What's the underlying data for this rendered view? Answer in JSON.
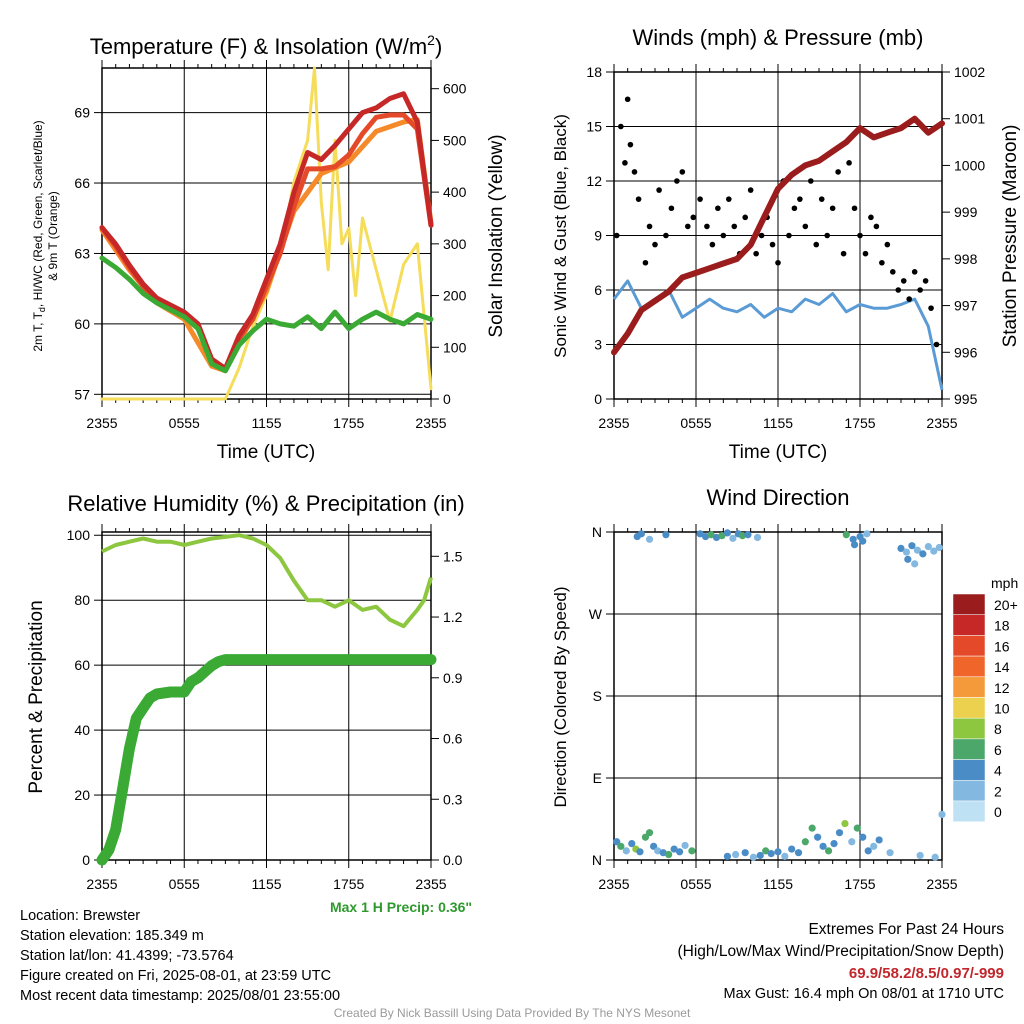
{
  "chart_data": [
    {
      "type": "line",
      "title": "Temperature (F) & Insolation (W/m",
      "title_sup": "2",
      "title_close": ")",
      "xlabel": "Time (UTC)",
      "ylabel_lines": [
        "2m T, T",
        "d",
        ", HI/WC (Red, Green, Scarlet/Blue)",
        "& 9m T (Orange)"
      ],
      "ylabel_right": "Solar Insolation (Yellow)",
      "xticks": [
        "2355",
        "0555",
        "1155",
        "1755",
        "2355"
      ],
      "x_hours": [
        0,
        6,
        12,
        18,
        24
      ],
      "ylim": [
        56.8,
        70.9
      ],
      "yticks": [
        "57",
        "60",
        "63",
        "66",
        "69"
      ],
      "ylim_right": [
        0,
        640
      ],
      "yticks_right": [
        "0",
        "100",
        "200",
        "300",
        "400",
        "500",
        "600"
      ],
      "series": [
        {
          "color": "#e44a2a",
          "x": [
            0,
            1,
            2,
            3,
            4,
            5,
            6,
            7,
            8,
            9,
            10,
            11,
            12,
            13,
            14,
            15,
            16,
            17,
            18,
            19,
            20,
            21,
            22,
            23,
            24
          ],
          "values": [
            64.1,
            63.3,
            62.4,
            61.6,
            61.0,
            60.7,
            60.4,
            59.9,
            58.4,
            58.1,
            59.4,
            60.2,
            61.6,
            63.0,
            65.0,
            66.6,
            66.6,
            66.7,
            67.2,
            68.1,
            68.8,
            68.9,
            68.9,
            68.3,
            64.2
          ]
        },
        {
          "color": "#f58a2a",
          "x": [
            0,
            2,
            4,
            6,
            8,
            9,
            10,
            12,
            14,
            16,
            18,
            20,
            22,
            23,
            24
          ],
          "values": [
            64.0,
            62.3,
            60.9,
            60.2,
            58.2,
            58.0,
            59.2,
            61.4,
            64.8,
            66.4,
            66.9,
            68.2,
            68.6,
            68.7,
            64.3
          ]
        },
        {
          "color": "#c62828",
          "x": [
            0,
            1,
            2,
            3,
            4,
            5,
            6,
            7,
            8,
            9,
            10,
            11,
            12,
            13,
            14,
            15,
            16,
            17,
            18,
            19,
            20,
            21,
            22,
            23,
            24
          ],
          "values": [
            64.1,
            63.4,
            62.5,
            61.7,
            61.1,
            60.8,
            60.5,
            60.0,
            58.5,
            58.1,
            59.5,
            60.4,
            61.9,
            63.4,
            65.6,
            67.3,
            67.0,
            67.6,
            68.3,
            69.0,
            69.2,
            69.6,
            69.8,
            68.6,
            64.2
          ]
        },
        {
          "color": "#3aaa35",
          "x": [
            0,
            1,
            2,
            3,
            4,
            5,
            6,
            7,
            8,
            9,
            10,
            11,
            12,
            13,
            14,
            15,
            16,
            17,
            18,
            19,
            20,
            21,
            22,
            23,
            24
          ],
          "values": [
            62.8,
            62.4,
            61.9,
            61.3,
            60.9,
            60.6,
            60.3,
            59.8,
            58.3,
            58.0,
            59.1,
            59.7,
            60.2,
            60.0,
            59.9,
            60.3,
            59.8,
            60.5,
            59.8,
            60.2,
            60.5,
            60.2,
            60.0,
            60.4,
            60.2
          ]
        },
        {
          "color": "#f5dd5a",
          "axis": "right",
          "x": [
            0,
            9,
            10,
            11,
            12,
            13,
            14,
            15,
            15.5,
            16,
            16.5,
            17,
            17.5,
            18,
            18.5,
            19,
            20,
            21,
            22,
            23,
            24
          ],
          "values": [
            0,
            0,
            60,
            140,
            200,
            280,
            420,
            500,
            640,
            380,
            250,
            500,
            300,
            330,
            200,
            350,
            250,
            150,
            260,
            300,
            20
          ]
        }
      ]
    },
    {
      "type": "line",
      "title": "Winds (mph) & Pressure (mb)",
      "xlabel": "Time (UTC)",
      "ylabel": "Sonic Wind & Gust (Blue, Black)",
      "ylabel_right": "Station Pressure (Maroon)",
      "xticks": [
        "2355",
        "0555",
        "1155",
        "1755",
        "2355"
      ],
      "x_hours": [
        0,
        6,
        12,
        18,
        24
      ],
      "ylim": [
        0,
        18
      ],
      "yticks": [
        "0",
        "3",
        "6",
        "9",
        "12",
        "15",
        "18"
      ],
      "ylim_right": [
        995,
        1002
      ],
      "yticks_right": [
        "995",
        "996",
        "997",
        "998",
        "999",
        "1000",
        "1001",
        "1002"
      ],
      "series": [
        {
          "color": "#5b9bd5",
          "x": [
            0,
            1,
            2,
            3,
            4,
            5,
            6,
            7,
            8,
            9,
            10,
            11,
            12,
            13,
            14,
            15,
            16,
            17,
            18,
            19,
            20,
            21,
            22,
            23,
            24
          ],
          "values": [
            5.5,
            6.5,
            5.0,
            5.5,
            6.0,
            4.5,
            5.0,
            5.5,
            5.0,
            4.8,
            5.2,
            4.5,
            5.0,
            4.8,
            5.5,
            5.2,
            5.8,
            4.8,
            5.2,
            5.0,
            5.0,
            5.2,
            5.5,
            4.0,
            0.5
          ]
        },
        {
          "color": "#9b1c1c",
          "axis": "right",
          "x": [
            0,
            1,
            2,
            3,
            4,
            5,
            6,
            7,
            8,
            9,
            10,
            11,
            12,
            13,
            14,
            15,
            16,
            17,
            18,
            19,
            20,
            21,
            22,
            23,
            24
          ],
          "values": [
            996.0,
            996.4,
            996.9,
            997.1,
            997.3,
            997.6,
            997.7,
            997.8,
            997.9,
            998.0,
            998.3,
            998.9,
            999.5,
            999.8,
            1000.0,
            1000.1,
            1000.3,
            1000.5,
            1000.8,
            1000.6,
            1000.7,
            1000.8,
            1001.0,
            1000.7,
            1000.9
          ]
        }
      ],
      "gust_points": {
        "x": [
          0.2,
          0.5,
          0.8,
          1.0,
          1.2,
          1.5,
          1.8,
          2.3,
          2.6,
          3.0,
          3.3,
          3.8,
          4.2,
          4.6,
          5.0,
          5.4,
          5.8,
          6.3,
          6.8,
          7.2,
          7.6,
          8.0,
          8.4,
          8.8,
          9.2,
          9.6,
          10.0,
          10.4,
          10.8,
          11.2,
          11.6,
          12.0,
          12.4,
          12.8,
          13.2,
          13.6,
          14.0,
          14.4,
          14.8,
          15.2,
          15.6,
          16.0,
          16.4,
          16.8,
          17.2,
          17.6,
          18.0,
          18.4,
          18.8,
          19.2,
          19.6,
          20.0,
          20.4,
          20.8,
          21.2,
          21.6,
          22.0,
          22.4,
          22.8,
          23.2,
          23.6
        ],
        "values": [
          9.0,
          15.0,
          13.0,
          16.5,
          14.0,
          12.5,
          11.0,
          7.5,
          9.5,
          8.5,
          11.5,
          9.0,
          10.5,
          12.0,
          12.5,
          9.5,
          10.0,
          11.0,
          9.5,
          8.5,
          10.5,
          9.0,
          11.0,
          9.5,
          8.0,
          10.0,
          11.5,
          8.0,
          9.0,
          10.0,
          8.5,
          7.5,
          12.0,
          9.0,
          10.5,
          11.0,
          9.5,
          12.0,
          8.5,
          11.0,
          9.0,
          10.5,
          12.5,
          8.0,
          13.0,
          10.5,
          9.0,
          8.0,
          10.0,
          9.5,
          7.5,
          8.5,
          7.0,
          6.0,
          6.5,
          5.5,
          7.0,
          6.0,
          6.5,
          5.0,
          3.0
        ]
      }
    },
    {
      "type": "line",
      "title": "Relative Humidity (%) & Precipitation (in)",
      "ylabel": "Percent & Precipitation",
      "xticks": [
        "2355",
        "0555",
        "1155",
        "1755",
        "2355"
      ],
      "x_hours": [
        0,
        6,
        12,
        18,
        24
      ],
      "ylim": [
        0,
        101
      ],
      "yticks": [
        "0",
        "20",
        "40",
        "60",
        "80",
        "100"
      ],
      "ylim_right": [
        0,
        1.62
      ],
      "yticks_right": [
        "0.0",
        "0.3",
        "0.6",
        "0.9",
        "1.2",
        "1.5"
      ],
      "series": [
        {
          "color": "#8dc63f",
          "x": [
            0,
            1,
            2,
            3,
            4,
            5,
            6,
            7,
            8,
            9,
            10,
            11,
            12,
            13,
            14,
            15,
            16,
            17,
            18,
            19,
            20,
            21,
            22,
            23,
            23.5,
            24
          ],
          "values": [
            95,
            97,
            98,
            99,
            98,
            98,
            97,
            98,
            99,
            99.5,
            100,
            99,
            97,
            93,
            86,
            80,
            80,
            78,
            80,
            77,
            78,
            74,
            72,
            77,
            80,
            87
          ]
        },
        {
          "color": "#3aaa35",
          "axis": "right",
          "x": [
            0,
            0.5,
            1,
            1.5,
            2,
            2.5,
            3,
            3.5,
            4,
            5,
            6,
            6.5,
            7,
            7.5,
            8,
            8.5,
            9,
            10,
            12,
            14,
            16,
            18,
            20,
            22,
            24
          ],
          "values": [
            0,
            0.05,
            0.15,
            0.35,
            0.55,
            0.7,
            0.75,
            0.8,
            0.82,
            0.83,
            0.83,
            0.88,
            0.9,
            0.93,
            0.96,
            0.98,
            0.99,
            0.99,
            0.99,
            0.99,
            0.99,
            0.99,
            0.99,
            0.99,
            0.99
          ]
        }
      ],
      "annotation": "Max 1 H Precip: 0.36\""
    },
    {
      "type": "scatter",
      "title": "Wind Direction",
      "ylabel": "Direction (Colored By Speed)",
      "xticks": [
        "2355",
        "0555",
        "1155",
        "1755",
        "2355"
      ],
      "x_hours": [
        0,
        6,
        12,
        18,
        24
      ],
      "ylim": [
        0,
        360
      ],
      "yticks": [
        "N",
        "E",
        "S",
        "W",
        "N"
      ],
      "colorbar_title": "mph",
      "colorbar_labels": [
        "20+",
        "18",
        "16",
        "14",
        "12",
        "10",
        "8",
        "6",
        "4",
        "2",
        "0"
      ],
      "colorbar_colors": [
        "#9b1c1c",
        "#c62828",
        "#e44a2a",
        "#f0652a",
        "#f59a3a",
        "#ecd14f",
        "#8dc63f",
        "#4ca86a",
        "#4a8cc6",
        "#83b8e0",
        "#bfe1f4"
      ],
      "points": {
        "x": [
          0.2,
          0.5,
          0.9,
          1.3,
          1.6,
          1.9,
          2.3,
          2.6,
          2.9,
          3.2,
          3.6,
          4.0,
          4.4,
          4.8,
          5.2,
          5.7,
          8.3,
          8.9,
          9.6,
          10.2,
          10.7,
          11.1,
          11.5,
          12.0,
          12.5,
          13.0,
          13.5,
          14.0,
          14.5,
          14.9,
          15.3,
          15.7,
          16.1,
          16.5,
          16.9,
          17.4,
          17.8,
          18.2,
          18.6,
          19.0,
          19.4,
          20.2,
          22.4,
          23.5,
          24.0,
          1.7,
          2.0,
          2.6,
          3.8,
          6.3,
          6.7,
          7.1,
          7.5,
          7.9,
          8.3,
          8.7,
          9.1,
          9.4,
          9.8,
          10.5,
          17.0,
          17.5,
          18.0,
          18.5,
          21.0,
          21.4,
          21.8,
          22.2,
          22.6,
          23.0,
          23.4,
          23.8,
          21.5,
          22.0,
          17.6,
          18.2
        ],
        "values": [
          20,
          15,
          10,
          18,
          12,
          9,
          25,
          30,
          15,
          10,
          8,
          6,
          12,
          9,
          16,
          10,
          4,
          6,
          8,
          3,
          5,
          10,
          7,
          9,
          4,
          12,
          8,
          20,
          35,
          25,
          15,
          10,
          18,
          30,
          40,
          20,
          35,
          25,
          10,
          15,
          22,
          8,
          5,
          3,
          50,
          355,
          358,
          352,
          357,
          358,
          355,
          357,
          354,
          356,
          359,
          353,
          358,
          356,
          357,
          354,
          357,
          352,
          355,
          358,
          342,
          338,
          345,
          340,
          336,
          344,
          339,
          343,
          330,
          325,
          346,
          350
        ],
        "speeds": [
          4,
          6,
          3,
          5,
          8,
          4,
          6,
          7,
          5,
          3,
          4,
          6,
          5,
          4,
          3,
          6,
          4,
          3,
          5,
          2,
          4,
          6,
          4,
          5,
          3,
          5,
          4,
          6,
          7,
          5,
          4,
          6,
          4,
          5,
          8,
          3,
          6,
          4,
          5,
          3,
          4,
          3,
          2,
          2,
          2,
          4,
          5,
          3,
          4,
          4,
          5,
          6,
          4,
          7,
          5,
          3,
          4,
          6,
          5,
          2,
          6,
          4,
          5,
          3,
          4,
          3,
          5,
          2,
          4,
          2,
          3,
          2,
          4,
          3,
          5,
          4
        ]
      }
    }
  ],
  "info": {
    "lines": [
      "Location: Brewster",
      "Station elevation: 185.349 m",
      "Station lat/lon: 41.4399; -73.5764",
      "Figure created on Fri, 2025-08-01, at 23:59 UTC",
      "Most recent data timestamp: 2025/08/01 23:55:00"
    ]
  },
  "extremes": {
    "title": "Extremes For Past 24 Hours",
    "subtitle": "(High/Low/Max Wind/Precipitation/Snow Depth)",
    "values": "69.9/58.2/8.5/0.97/-999",
    "gust": "Max Gust: 16.4 mph On 08/01 at 1710 UTC"
  },
  "credit": "Created By Nick Bassill Using Data Provided By The NYS Mesonet"
}
